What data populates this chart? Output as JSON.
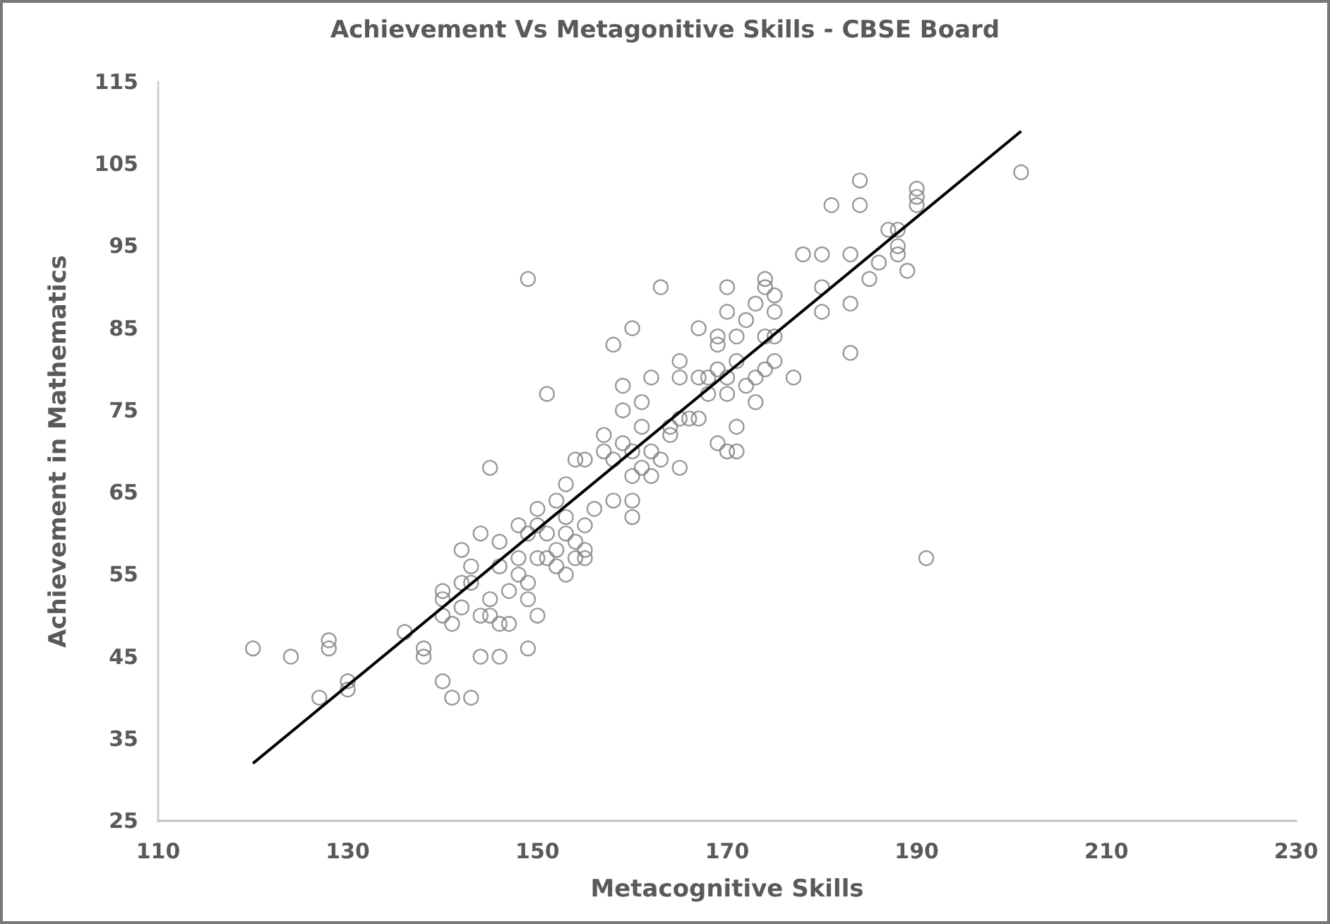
{
  "chart_data": {
    "type": "scatter",
    "title": "Achievement Vs Metagonitive Skills - CBSE Board",
    "xlabel": "Metacognitive Skills",
    "ylabel": "Achievement in Mathematics",
    "xlim": [
      110,
      230
    ],
    "xticks": [
      110,
      130,
      150,
      170,
      190,
      210,
      230
    ],
    "ylim": [
      25,
      115
    ],
    "yticks": [
      25,
      35,
      45,
      55,
      65,
      75,
      85,
      95,
      105,
      115
    ],
    "grid": false,
    "marker": "circle",
    "series": [
      {
        "color": "#808080",
        "x": [
          120,
          124,
          127,
          128,
          128,
          130,
          130,
          136,
          138,
          138,
          140,
          141,
          143,
          140,
          140,
          140,
          141,
          142,
          142,
          142,
          143,
          143,
          144,
          144,
          144,
          145,
          145,
          145,
          146,
          146,
          146,
          146,
          147,
          147,
          148,
          148,
          148,
          149,
          149,
          149,
          149,
          149,
          150,
          150,
          150,
          150,
          151,
          151,
          151,
          152,
          152,
          152,
          153,
          153,
          153,
          153,
          154,
          154,
          154,
          155,
          155,
          155,
          155,
          156,
          157,
          157,
          158,
          158,
          158,
          159,
          159,
          159,
          160,
          160,
          160,
          160,
          160,
          161,
          161,
          161,
          162,
          162,
          162,
          163,
          163,
          164,
          164,
          165,
          165,
          165,
          165,
          166,
          167,
          167,
          167,
          168,
          168,
          169,
          169,
          169,
          169,
          170,
          170,
          170,
          170,
          170,
          171,
          171,
          171,
          171,
          172,
          172,
          173,
          173,
          173,
          174,
          174,
          174,
          174,
          175,
          175,
          175,
          175,
          177,
          178,
          180,
          180,
          180,
          181,
          183,
          183,
          183,
          184,
          184,
          185,
          186,
          187,
          188,
          188,
          188,
          189,
          190,
          190,
          190,
          191,
          201
        ],
        "values": [
          46,
          45,
          40,
          47,
          46,
          42,
          41,
          48,
          46,
          45,
          42,
          40,
          40,
          53,
          52,
          50,
          49,
          51,
          54,
          58,
          54,
          56,
          60,
          45,
          50,
          50,
          52,
          68,
          45,
          49,
          56,
          59,
          49,
          53,
          55,
          61,
          57,
          60,
          54,
          46,
          52,
          91,
          50,
          57,
          61,
          63,
          57,
          60,
          77,
          64,
          56,
          58,
          55,
          60,
          62,
          66,
          57,
          59,
          69,
          57,
          58,
          61,
          69,
          63,
          70,
          72,
          83,
          64,
          69,
          71,
          75,
          78,
          62,
          64,
          67,
          70,
          85,
          73,
          68,
          76,
          67,
          70,
          79,
          69,
          90,
          72,
          73,
          68,
          74,
          79,
          81,
          74,
          74,
          79,
          85,
          77,
          79,
          80,
          83,
          84,
          71,
          70,
          77,
          79,
          87,
          90,
          70,
          73,
          81,
          84,
          78,
          86,
          76,
          79,
          88,
          80,
          84,
          90,
          91,
          81,
          84,
          87,
          89,
          79,
          94,
          87,
          90,
          94,
          100,
          82,
          88,
          94,
          100,
          103,
          91,
          93,
          97,
          94,
          95,
          97,
          92,
          100,
          101,
          102,
          57,
          104
        ]
      },
      {
        "type": "line",
        "marker": "none",
        "color": "#000000",
        "x": [
          120,
          201
        ],
        "values": [
          32,
          109
        ]
      }
    ]
  }
}
